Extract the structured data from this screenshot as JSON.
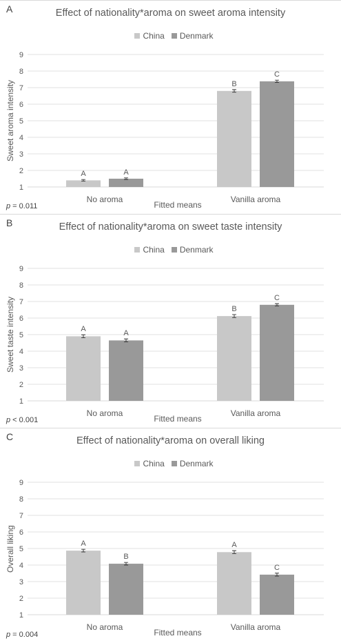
{
  "colors": {
    "china": "#c8c8c8",
    "denmark": "#999999",
    "grid": "#d9d9d9",
    "text": "#595959"
  },
  "chart_data": [
    {
      "type": "bar",
      "panel_letter": "A",
      "title": "Effect of nationality*aroma on sweet aroma intensity",
      "xlabel": "Fitted means",
      "ylabel": "Sweet aroma intensity",
      "ylim": [
        1,
        9
      ],
      "yticks": [
        "1",
        "2",
        "3",
        "4",
        "5",
        "6",
        "7",
        "8",
        "9"
      ],
      "categories": [
        "No aroma",
        "Vanilla aroma"
      ],
      "series": [
        {
          "name": "China",
          "values": [
            1.4,
            6.8
          ],
          "errors": [
            0.05,
            0.08
          ],
          "letters": [
            "A",
            "B"
          ]
        },
        {
          "name": "Denmark",
          "values": [
            1.5,
            7.38
          ],
          "errors": [
            0.05,
            0.07
          ],
          "letters": [
            "A",
            "C"
          ]
        }
      ],
      "p_label": "p",
      "p_text": " = 0.011",
      "grid": true,
      "legend": "top"
    },
    {
      "type": "bar",
      "panel_letter": "B",
      "title": "Effect of nationality*aroma on sweet taste intensity",
      "xlabel": "Fitted means",
      "ylabel": "Sweet taste intensity",
      "ylim": [
        1,
        9
      ],
      "yticks": [
        "1",
        "2",
        "3",
        "4",
        "5",
        "6",
        "7",
        "8",
        "9"
      ],
      "categories": [
        "No aroma",
        "Vanilla aroma"
      ],
      "series": [
        {
          "name": "China",
          "values": [
            4.9,
            6.12
          ],
          "errors": [
            0.09,
            0.09
          ],
          "letters": [
            "A",
            "B"
          ]
        },
        {
          "name": "Denmark",
          "values": [
            4.65,
            6.8
          ],
          "errors": [
            0.09,
            0.07
          ],
          "letters": [
            "A",
            "C"
          ]
        }
      ],
      "p_label": "p",
      "p_text": " < 0.001",
      "grid": true,
      "legend": "top"
    },
    {
      "type": "bar",
      "panel_letter": "C",
      "title": "Effect of nationality*aroma on overall liking",
      "xlabel": "Fitted means",
      "ylabel": "Overall liking",
      "ylim": [
        1,
        9
      ],
      "yticks": [
        "1",
        "2",
        "3",
        "4",
        "5",
        "6",
        "7",
        "8",
        "9"
      ],
      "categories": [
        "No aroma",
        "Vanilla aroma"
      ],
      "series": [
        {
          "name": "China",
          "values": [
            4.87,
            4.78
          ],
          "errors": [
            0.08,
            0.09
          ],
          "letters": [
            "A",
            "A"
          ]
        },
        {
          "name": "Denmark",
          "values": [
            4.08,
            3.42
          ],
          "errors": [
            0.08,
            0.09
          ],
          "letters": [
            "B",
            "C"
          ]
        }
      ],
      "p_label": "p",
      "p_text": " = 0.004",
      "grid": true,
      "legend": "top"
    }
  ]
}
